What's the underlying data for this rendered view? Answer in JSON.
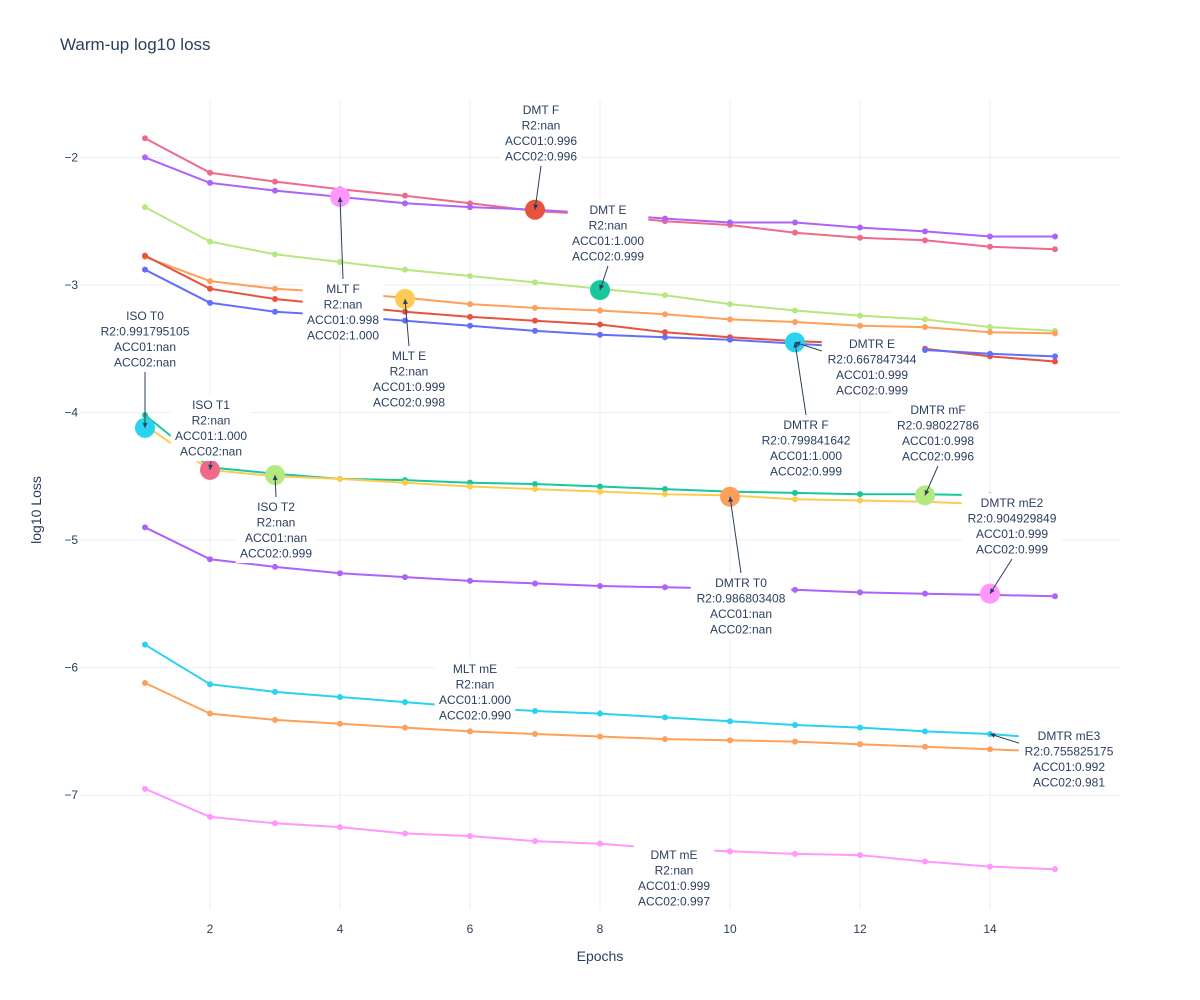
{
  "chart_data": {
    "type": "line",
    "title": "Warm-up log10 loss",
    "xlabel": "Epochs",
    "ylabel": "log10 Loss",
    "xlim": [
      0.0,
      16.0
    ],
    "ylim": [
      -7.9,
      -1.55
    ],
    "xticks": [
      2,
      4,
      6,
      8,
      10,
      12,
      14
    ],
    "xtick_labels": [
      "2",
      "4",
      "6",
      "8",
      "10",
      "12",
      "14"
    ],
    "yticks": [
      -2,
      -3,
      -4,
      -5,
      -6,
      -7
    ],
    "ytick_labels": [
      "−2",
      "−3",
      "−4",
      "−5",
      "−6",
      "−7"
    ],
    "grid": true,
    "x": [
      1,
      2,
      3,
      4,
      5,
      6,
      7,
      8,
      9,
      10,
      11,
      12,
      13,
      14,
      15
    ],
    "series": [
      {
        "name": "DMT F",
        "color": "#ef6a8a",
        "values": [
          -1.85,
          -2.12,
          -2.19,
          -2.25,
          -2.3,
          -2.36,
          -2.42,
          -2.45,
          -2.5,
          -2.53,
          -2.59,
          -2.63,
          -2.65,
          -2.7,
          -2.72
        ]
      },
      {
        "name": "DMT E",
        "color": "#ab63fa",
        "values": [
          -2.0,
          -2.2,
          -2.26,
          -2.31,
          -2.36,
          -2.39,
          -2.41,
          -2.44,
          -2.48,
          -2.51,
          -2.51,
          -2.55,
          -2.58,
          -2.62,
          -2.62
        ]
      },
      {
        "name": "MLT F",
        "color": "#b6e880",
        "values": [
          -2.39,
          -2.66,
          -2.76,
          -2.82,
          -2.88,
          -2.93,
          -2.98,
          -3.03,
          -3.08,
          -3.15,
          -3.2,
          -3.24,
          -3.27,
          -3.33,
          -3.36
        ]
      },
      {
        "name": "MLT E",
        "color": "#fda05a",
        "values": [
          -2.78,
          -2.97,
          -3.03,
          -3.06,
          -3.1,
          -3.15,
          -3.18,
          -3.2,
          -3.23,
          -3.27,
          -3.29,
          -3.32,
          -3.33,
          -3.37,
          -3.38
        ]
      },
      {
        "name": "DMTR E",
        "color": "#e8533d",
        "values": [
          -2.77,
          -3.03,
          -3.11,
          -3.16,
          -3.21,
          -3.25,
          -3.28,
          -3.31,
          -3.37,
          -3.41,
          -3.44,
          -3.46,
          -3.5,
          -3.56,
          -3.6
        ]
      },
      {
        "name": "DMTR F",
        "color": "#636efa",
        "values": [
          -2.88,
          -3.14,
          -3.21,
          -3.24,
          -3.28,
          -3.32,
          -3.36,
          -3.39,
          -3.41,
          -3.43,
          -3.46,
          -3.49,
          -3.51,
          -3.54,
          -3.56
        ]
      },
      {
        "name": "ISO T1",
        "color": "#18c79b",
        "values": [
          -4.02,
          -4.43,
          -4.48,
          -4.52,
          -4.53,
          -4.55,
          -4.56,
          -4.58,
          -4.6,
          -4.62,
          -4.63,
          -4.64,
          -4.64,
          -4.65,
          -4.67
        ]
      },
      {
        "name": "ISO T2",
        "color": "#fecb52",
        "values": [
          -4.1,
          -4.45,
          -4.5,
          -4.52,
          -4.55,
          -4.58,
          -4.6,
          -4.62,
          -4.64,
          -4.65,
          -4.68,
          -4.69,
          -4.7,
          -4.72,
          -4.73
        ]
      },
      {
        "name": "DMTR mE2",
        "color": "#ab63fa",
        "values": [
          -4.9,
          -5.15,
          -5.21,
          -5.26,
          -5.29,
          -5.32,
          -5.34,
          -5.36,
          -5.37,
          -5.38,
          -5.39,
          -5.41,
          -5.42,
          -5.43,
          -5.44
        ]
      },
      {
        "name": "DMTR mE3",
        "color": "#28d3ef",
        "values": [
          -5.82,
          -6.13,
          -6.19,
          -6.23,
          -6.27,
          -6.31,
          -6.34,
          -6.36,
          -6.39,
          -6.42,
          -6.45,
          -6.47,
          -6.5,
          -6.52,
          -6.56
        ]
      },
      {
        "name": "MLT mE",
        "color": "#fda05a",
        "values": [
          -6.12,
          -6.36,
          -6.41,
          -6.44,
          -6.47,
          -6.5,
          -6.52,
          -6.54,
          -6.56,
          -6.57,
          -6.58,
          -6.6,
          -6.62,
          -6.64,
          -6.66
        ]
      },
      {
        "name": "DMT mE",
        "color": "#ff97ff",
        "values": [
          -6.95,
          -7.17,
          -7.22,
          -7.25,
          -7.3,
          -7.32,
          -7.36,
          -7.38,
          -7.42,
          -7.44,
          -7.46,
          -7.47,
          -7.52,
          -7.56,
          -7.58
        ]
      }
    ],
    "markers": [
      {
        "label": "DMT F",
        "x": 7,
        "y": -2.41,
        "color": "#e8533d"
      },
      {
        "label": "DMT E",
        "x": 8,
        "y": -3.04,
        "color": "#18c79b"
      },
      {
        "label": "MLT F",
        "x": 4,
        "y": -2.31,
        "color": "#ff97ff"
      },
      {
        "label": "MLT E",
        "x": 5,
        "y": -3.11,
        "color": "#fecb52"
      },
      {
        "label": "DMTR E",
        "x": 11,
        "y": -3.45,
        "color": "#28d3ef"
      },
      {
        "label": "ISO T0",
        "x": 1,
        "y": -4.12,
        "color": "#28d3ef"
      },
      {
        "label": "ISO T1",
        "x": 2,
        "y": -4.45,
        "color": "#ef6a8a"
      },
      {
        "label": "ISO T2",
        "x": 3,
        "y": -4.49,
        "color": "#b6e880"
      },
      {
        "label": "DMTR T0",
        "x": 10,
        "y": -4.66,
        "color": "#fda05a"
      },
      {
        "label": "DMTR mF",
        "x": 13,
        "y": -4.65,
        "color": "#b6e880"
      },
      {
        "label": "DMTR mE2",
        "x": 14,
        "y": -5.42,
        "color": "#ff97ff"
      }
    ],
    "annotations": [
      {
        "x": 7,
        "y": -2.41,
        "lines": [
          "DMT F",
          "R2:nan",
          "ACC01:0.996",
          "ACC02:0.996"
        ]
      },
      {
        "x": 8,
        "y": -3.04,
        "lines": [
          "DMT E",
          "R2:nan",
          "ACC01:1.000",
          "ACC02:0.999"
        ]
      },
      {
        "x": 4,
        "y": -2.31,
        "lines": [
          "MLT F",
          "R2:nan",
          "ACC01:0.998",
          "ACC02:1.000"
        ]
      },
      {
        "x": 5,
        "y": -3.11,
        "lines": [
          "MLT E",
          "R2:nan",
          "ACC01:0.999",
          "ACC02:0.998"
        ]
      },
      {
        "x": 11,
        "y": -3.45,
        "lines": [
          "DMTR E",
          "R2:0.667847344",
          "ACC01:0.999",
          "ACC02:0.999"
        ]
      },
      {
        "x": 11,
        "y": -3.45,
        "lines": [
          "DMTR F",
          "R2:0.799841642",
          "ACC01:1.000",
          "ACC02:0.999"
        ]
      },
      {
        "x": 1,
        "y": -4.12,
        "lines": [
          "ISO T0",
          "R2:0.991795105",
          "ACC01:nan",
          "ACC02:nan"
        ]
      },
      {
        "x": 2,
        "y": -4.45,
        "lines": [
          "ISO T1",
          "R2:nan",
          "ACC01:1.000",
          "ACC02:nan"
        ]
      },
      {
        "x": 3,
        "y": -4.49,
        "lines": [
          "ISO T2",
          "R2:nan",
          "ACC01:nan",
          "ACC02:0.999"
        ]
      },
      {
        "x": 10,
        "y": -4.66,
        "lines": [
          "DMTR T0",
          "R2:0.986803408",
          "ACC01:nan",
          "ACC02:nan"
        ]
      },
      {
        "x": 13,
        "y": -4.65,
        "lines": [
          "DMTR mF",
          "R2:0.98022786",
          "ACC01:0.998",
          "ACC02:0.996"
        ]
      },
      {
        "x": 14,
        "y": -5.42,
        "lines": [
          "DMTR mE2",
          "R2:0.904929849",
          "ACC01:0.999",
          "ACC02:0.999"
        ]
      },
      {
        "x": 14,
        "y": -6.52,
        "lines": [
          "DMTR mE3",
          "R2:0.755825175",
          "ACC01:0.992",
          "ACC02:0.981"
        ]
      },
      {
        "x": 6,
        "y": -6.36,
        "lines": [
          "MLT mE",
          "R2:nan",
          "ACC01:1.000",
          "ACC02:0.990"
        ]
      },
      {
        "x": 9,
        "y": -7.4,
        "lines": [
          "DMT mE",
          "R2:nan",
          "ACC01:0.999",
          "ACC02:0.997"
        ]
      }
    ]
  }
}
